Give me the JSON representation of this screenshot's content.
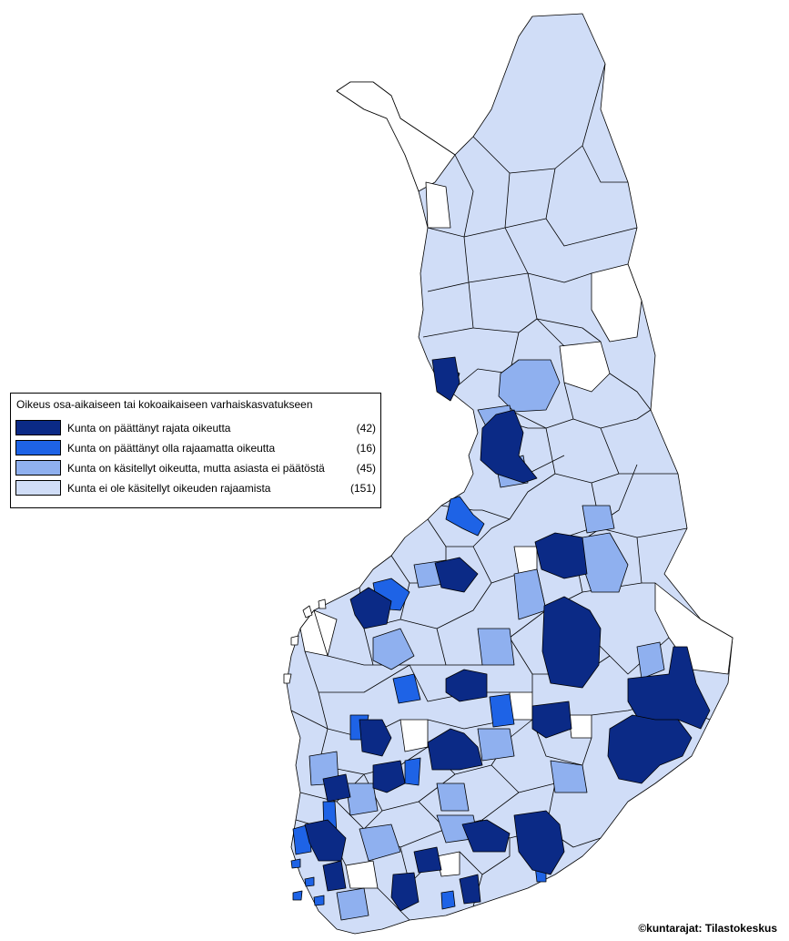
{
  "colors": {
    "dark": "#0b2a86",
    "bright": "#1e63e6",
    "medium": "#8fb0ef",
    "light": "#d0ddf7",
    "none": "#ffffff",
    "border": "#000000"
  },
  "legend": {
    "title": "Oikeus osa-aikaiseen tai kokoaikaiseen varhaiskasvatukseen",
    "items": [
      {
        "label": "Kunta on päättänyt rajata oikeutta",
        "count": "(42)",
        "color": "#0b2a86"
      },
      {
        "label": "Kunta on päättänyt olla rajaamatta oikeutta",
        "count": "(16)",
        "color": "#1e63e6"
      },
      {
        "label": "Kunta on käsitellyt oikeutta, mutta asiasta ei päätöstä",
        "count": "(45)",
        "color": "#8fb0ef"
      },
      {
        "label": "Kunta ei ole käsitellyt oikeuden rajaamista",
        "count": "(151)",
        "color": "#d0ddf7"
      }
    ]
  },
  "credit": "©kuntarajat: Tilastokeskus"
}
